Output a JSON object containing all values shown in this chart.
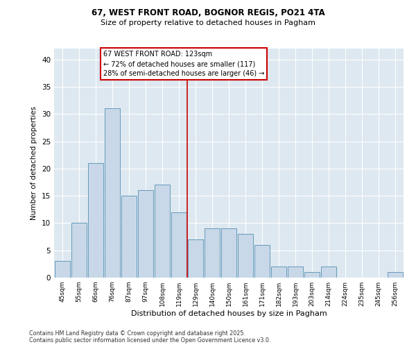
{
  "title_line1": "67, WEST FRONT ROAD, BOGNOR REGIS, PO21 4TA",
  "title_line2": "Size of property relative to detached houses in Pagham",
  "xlabel": "Distribution of detached houses by size in Pagham",
  "ylabel": "Number of detached properties",
  "categories": [
    "45sqm",
    "55sqm",
    "66sqm",
    "76sqm",
    "87sqm",
    "97sqm",
    "108sqm",
    "119sqm",
    "129sqm",
    "140sqm",
    "150sqm",
    "161sqm",
    "171sqm",
    "182sqm",
    "193sqm",
    "203sqm",
    "214sqm",
    "224sqm",
    "235sqm",
    "245sqm",
    "256sqm"
  ],
  "values": [
    3,
    10,
    21,
    31,
    15,
    16,
    17,
    12,
    7,
    9,
    9,
    8,
    6,
    2,
    2,
    1,
    2,
    0,
    0,
    0,
    1
  ],
  "bar_color": "#c8d8e8",
  "bar_edgecolor": "#6699bb",
  "grid_color": "#cccccc",
  "background_color": "#dde8f0",
  "annotation_text": "67 WEST FRONT ROAD: 123sqm\n← 72% of detached houses are smaller (117)\n28% of semi-detached houses are larger (46) →",
  "vline_x_index": 7.5,
  "vline_color": "#cc0000",
  "box_edgecolor": "#cc0000",
  "footer_line1": "Contains HM Land Registry data © Crown copyright and database right 2025.",
  "footer_line2": "Contains public sector information licensed under the Open Government Licence v3.0.",
  "ylim": [
    0,
    42
  ],
  "yticks": [
    0,
    5,
    10,
    15,
    20,
    25,
    30,
    35,
    40
  ]
}
